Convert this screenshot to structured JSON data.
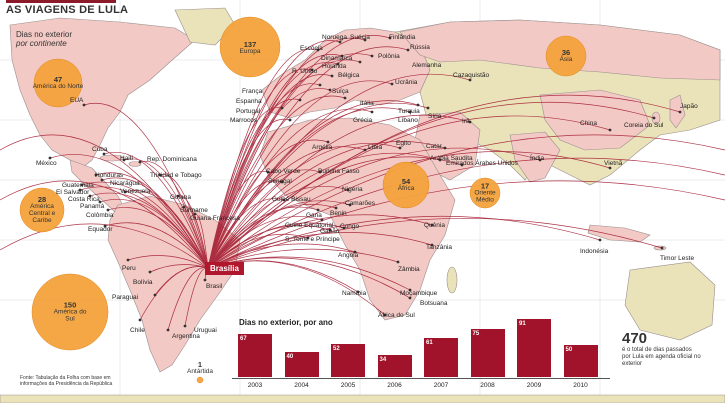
{
  "title": "AS VIAGENS DE LULA",
  "legend": {
    "line1": "Dias no exterior",
    "line2": "por continente"
  },
  "origin_label": "Brasília",
  "continents": [
    {
      "value": "47",
      "name": "América do Norte"
    },
    {
      "value": "137",
      "name": "Europa"
    },
    {
      "value": "36",
      "name": "Ásia"
    },
    {
      "value": "28",
      "name": "América Central e Caribe"
    },
    {
      "value": "54",
      "name": "África"
    },
    {
      "value": "17",
      "name": "Oriente Médio"
    },
    {
      "value": "150",
      "name": "América do Sul"
    },
    {
      "value": "1",
      "name": "Antártida"
    }
  ],
  "countries": [
    "EUA",
    "Cuba",
    "Haiti",
    "Rep. Dominicana",
    "México",
    "Honduras",
    "Nicarágua",
    "Guatemala",
    "El Salvador",
    "Costa Rica",
    "Panamá",
    "Colômbia",
    "Venezuela",
    "Trinidad e Tobago",
    "Guiana",
    "Suriname",
    "Guiana Francesa",
    "Equador",
    "Peru",
    "Bolívia",
    "Brasil",
    "Paraguai",
    "Chile",
    "Argentina",
    "Uruguai",
    "Noruega",
    "Suécia",
    "Finlândia",
    "Escócia",
    "Dinamarca",
    "Polônia",
    "Rússia",
    "R. Unido",
    "Holanda",
    "Alemanha",
    "Bélgica",
    "Cazaquistão",
    "França",
    "Ucrânia",
    "Espanha",
    "Itália",
    "Portugal",
    "Suíça",
    "Marrocos",
    "Grécia",
    "Turquia",
    "Síria",
    "Líbano",
    "Irã",
    "Argélia",
    "Líbia",
    "Egito",
    "Catar",
    "Arábia Saudita",
    "Emirados Árabes Unidos",
    "Índia",
    "China",
    "Coreia do Sul",
    "Japão",
    "Vietnã",
    "Indonésia",
    "Timor Leste",
    "Cabo Verde",
    "Senegal",
    "Burkina Fasso",
    "Guiné Bissau",
    "Nigéria",
    "Gana",
    "Benin",
    "Camarões",
    "Guiné Equatorial",
    "Gabão",
    "Congo",
    "S. Tomé e Príncipe",
    "Quênia",
    "Tanzânia",
    "Angola",
    "Zâmbia",
    "Namíbia",
    "Moçambique",
    "Botsuana",
    "África do Sul"
  ],
  "chart_data": {
    "type": "bar",
    "title": "Dias no exterior, por ano",
    "categories": [
      "2003",
      "2004",
      "2005",
      "2006",
      "2007",
      "2008",
      "2009",
      "2010"
    ],
    "values": [
      67,
      40,
      52,
      34,
      61,
      75,
      91,
      50
    ],
    "ylim": [
      0,
      91
    ]
  },
  "total": {
    "value": "470",
    "text": "é o total de dias passados por Lula em agenda oficial no exterior"
  },
  "source": {
    "line1": "Fonte: Tabulação da Folha com base em",
    "line2": "informações da Presidência da República"
  },
  "colors": {
    "route": "#a0132a",
    "bubble": "#f4a23c",
    "visited": "#f2c9c4",
    "land": "#eae2b8",
    "sea": "#ffffff"
  }
}
